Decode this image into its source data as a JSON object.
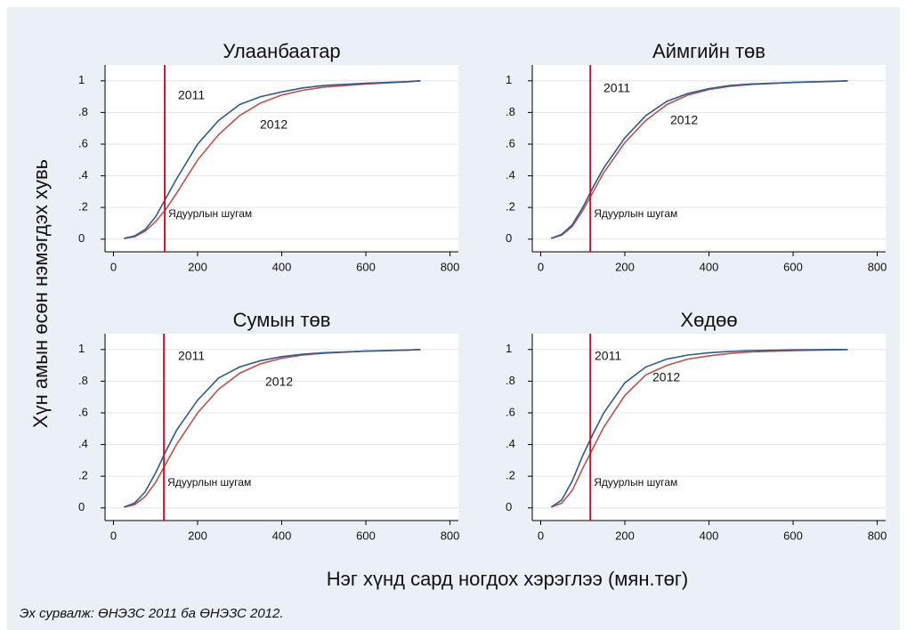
{
  "ylabel": "Хүн амын өсөн нэмэгдэх хувь",
  "xlabel": "Нэг хүнд сард ногдох хэрэглээ (мян.төг)",
  "note": "Эх сурвалж: ӨНЭЗС 2011 ба ӨНЭЗС 2012.",
  "chart_data": [
    {
      "type": "line",
      "title": "Улаанбаатар",
      "x": [
        25,
        50,
        75,
        100,
        125,
        150,
        200,
        250,
        300,
        350,
        400,
        450,
        500,
        600,
        700,
        730
      ],
      "series": [
        {
          "name": "2011",
          "color": "#2e5b8c",
          "values": [
            0.005,
            0.02,
            0.06,
            0.14,
            0.26,
            0.38,
            0.6,
            0.75,
            0.85,
            0.9,
            0.93,
            0.955,
            0.97,
            0.985,
            0.995,
            1
          ]
        },
        {
          "name": "2012",
          "color": "#c0504d",
          "values": [
            0.005,
            0.015,
            0.05,
            0.11,
            0.19,
            0.29,
            0.5,
            0.66,
            0.78,
            0.86,
            0.91,
            0.94,
            0.96,
            0.98,
            0.993,
            1
          ]
        }
      ],
      "poverty_line": 122,
      "annotation": "Ядуурлын шугам",
      "xlim": [
        -20,
        820
      ],
      "ylim": [
        -0.08,
        1.1
      ],
      "xticks": [
        0,
        200,
        400,
        600,
        800
      ],
      "yticks": [
        0,
        {
          "value": 0.2,
          "label": ".2"
        },
        {
          "value": 0.4,
          "label": ".4"
        },
        {
          "value": 0.6,
          "label": ".6"
        },
        {
          "value": 0.8,
          "label": ".8"
        },
        1
      ],
      "grid": true
    },
    {
      "type": "line",
      "title": "Аймгийн төв",
      "x": [
        25,
        50,
        75,
        100,
        125,
        150,
        200,
        250,
        300,
        350,
        400,
        450,
        500,
        600,
        700,
        730
      ],
      "series": [
        {
          "name": "2011",
          "color": "#2e5b8c",
          "values": [
            0.005,
            0.03,
            0.09,
            0.2,
            0.33,
            0.45,
            0.64,
            0.78,
            0.87,
            0.92,
            0.95,
            0.97,
            0.98,
            0.99,
            0.997,
            1
          ]
        },
        {
          "name": "2012",
          "color": "#c0504d",
          "values": [
            0.005,
            0.025,
            0.08,
            0.18,
            0.3,
            0.42,
            0.61,
            0.75,
            0.85,
            0.91,
            0.945,
            0.965,
            0.977,
            0.99,
            0.996,
            1
          ]
        }
      ],
      "poverty_line": 118,
      "annotation": "Ядуурлын шугам",
      "xlim": [
        -20,
        820
      ],
      "ylim": [
        -0.08,
        1.1
      ],
      "xticks": [
        0,
        200,
        400,
        600,
        800
      ],
      "yticks": [
        0,
        {
          "value": 0.2,
          "label": ".2"
        },
        {
          "value": 0.4,
          "label": ".4"
        },
        {
          "value": 0.6,
          "label": ".6"
        },
        {
          "value": 0.8,
          "label": ".8"
        },
        1
      ],
      "grid": true
    },
    {
      "type": "line",
      "title": "Сумын төв",
      "x": [
        25,
        50,
        75,
        100,
        125,
        150,
        200,
        250,
        300,
        350,
        400,
        450,
        500,
        600,
        700,
        730
      ],
      "series": [
        {
          "name": "2011",
          "color": "#2e5b8c",
          "values": [
            0.005,
            0.03,
            0.1,
            0.22,
            0.36,
            0.49,
            0.68,
            0.82,
            0.89,
            0.93,
            0.955,
            0.97,
            0.98,
            0.99,
            0.997,
            1
          ]
        },
        {
          "name": "2012",
          "color": "#c0504d",
          "values": [
            0.005,
            0.02,
            0.07,
            0.16,
            0.28,
            0.4,
            0.6,
            0.75,
            0.85,
            0.91,
            0.945,
            0.965,
            0.977,
            0.99,
            0.996,
            1
          ]
        }
      ],
      "poverty_line": 120,
      "annotation": "Ядуурлын шугам",
      "xlim": [
        -20,
        820
      ],
      "ylim": [
        -0.08,
        1.1
      ],
      "xticks": [
        0,
        200,
        400,
        600,
        800
      ],
      "yticks": [
        0,
        {
          "value": 0.2,
          "label": ".2"
        },
        {
          "value": 0.4,
          "label": ".4"
        },
        {
          "value": 0.6,
          "label": ".6"
        },
        {
          "value": 0.8,
          "label": ".8"
        },
        1
      ],
      "grid": true
    },
    {
      "type": "line",
      "title": "Хөдөө",
      "x": [
        25,
        50,
        75,
        100,
        125,
        150,
        200,
        250,
        300,
        350,
        400,
        450,
        500,
        600,
        700,
        730
      ],
      "series": [
        {
          "name": "2011",
          "color": "#2e5b8c",
          "values": [
            0.005,
            0.05,
            0.17,
            0.33,
            0.47,
            0.6,
            0.79,
            0.89,
            0.94,
            0.965,
            0.98,
            0.988,
            0.993,
            0.998,
            1,
            1
          ]
        },
        {
          "name": "2012",
          "color": "#c0504d",
          "values": [
            0.005,
            0.03,
            0.11,
            0.25,
            0.38,
            0.51,
            0.71,
            0.84,
            0.9,
            0.94,
            0.96,
            0.975,
            0.985,
            0.993,
            0.998,
            1
          ]
        }
      ],
      "poverty_line": 118,
      "annotation": "Ядуурлын шугам",
      "xlim": [
        -20,
        820
      ],
      "ylim": [
        -0.08,
        1.1
      ],
      "xticks": [
        0,
        200,
        400,
        600,
        800
      ],
      "yticks": [
        0,
        {
          "value": 0.2,
          "label": ".2"
        },
        {
          "value": 0.4,
          "label": ".4"
        },
        {
          "value": 0.6,
          "label": ".6"
        },
        {
          "value": 0.8,
          "label": ".8"
        },
        1
      ],
      "grid": true
    }
  ]
}
